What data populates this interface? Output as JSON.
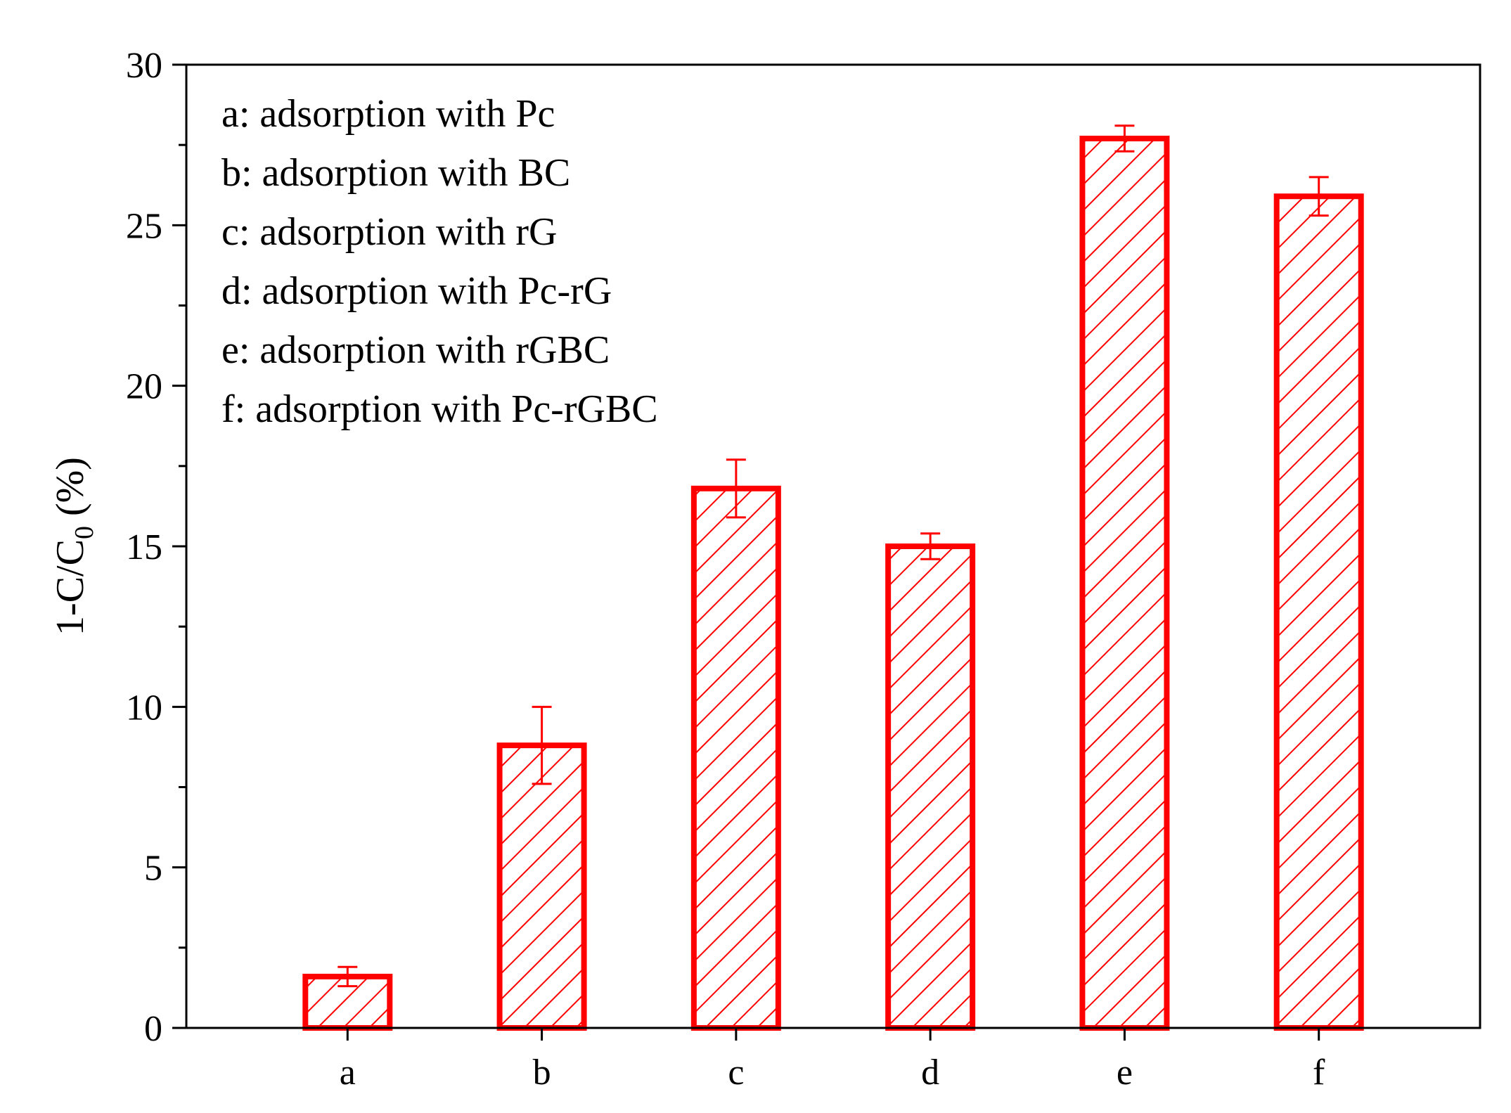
{
  "chart_data": {
    "type": "bar",
    "title": "",
    "xlabel": "",
    "ylabel": {
      "main": "1-C/C",
      "subscript": "0",
      "unit": " (%)"
    },
    "categories": [
      "a",
      "b",
      "c",
      "d",
      "e",
      "f"
    ],
    "values": [
      1.6,
      8.8,
      16.8,
      15.0,
      27.7,
      25.9
    ],
    "errors": [
      0.3,
      1.2,
      0.9,
      0.4,
      0.4,
      0.6
    ],
    "ylim": [
      0,
      30
    ],
    "yticks": [
      0,
      5,
      10,
      15,
      20,
      25,
      30
    ],
    "grid": false,
    "legend_position": "top-left",
    "legend_entries": [
      "a: adsorption with Pc",
      "b: adsorption with BC",
      "c: adsorption with rG",
      "d: adsorption with Pc-rG",
      "e: adsorption with rGBC",
      "f: adsorption with Pc-rGBC"
    ],
    "colors": {
      "bar": "#ff0000",
      "axis": "#000000"
    }
  }
}
